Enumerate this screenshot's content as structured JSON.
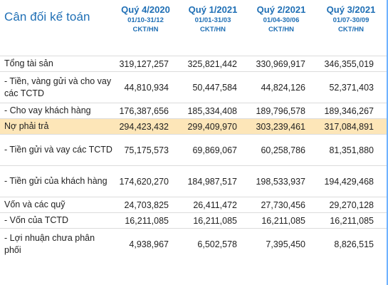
{
  "table": {
    "title": "Cân đối kế toán",
    "columns": [
      {
        "quarter": "Quý 4/2020",
        "range": "01/10-31/12",
        "unit": "CKT/HN"
      },
      {
        "quarter": "Quý 1/2021",
        "range": "01/01-31/03",
        "unit": "CKT/HN"
      },
      {
        "quarter": "Quý 2/2021",
        "range": "01/04-30/06",
        "unit": "CKT/HN"
      },
      {
        "quarter": "Quý 3/2021",
        "range": "01/07-30/09",
        "unit": "CKT/HN"
      }
    ],
    "rows": [
      {
        "label": "Tổng tài sản",
        "values": [
          "319,127,257",
          "325,821,442",
          "330,969,917",
          "346,355,019"
        ]
      },
      {
        "label": "- Tiền, vàng gửi và cho vay các TCTD",
        "values": [
          "44,810,934",
          "50,447,584",
          "44,824,126",
          "52,371,403"
        ]
      },
      {
        "label": "- Cho vay khách hàng",
        "values": [
          "176,387,656",
          "185,334,408",
          "189,796,578",
          "189,346,267"
        ]
      },
      {
        "label": "Nợ phải trả",
        "values": [
          "294,423,432",
          "299,409,970",
          "303,239,461",
          "317,084,891"
        ]
      },
      {
        "label": "- Tiền gửi và vay các TCTD",
        "values": [
          "75,175,573",
          "69,869,067",
          "60,258,786",
          "81,351,880"
        ]
      },
      {
        "label": "- Tiền gửi của khách hàng",
        "values": [
          "174,620,270",
          "184,987,517",
          "198,533,937",
          "194,429,468"
        ]
      },
      {
        "label": "Vốn và các quỹ",
        "values": [
          "24,703,825",
          "26,411,472",
          "27,730,456",
          "29,270,128"
        ]
      },
      {
        "label": "- Vốn của TCTD",
        "values": [
          "16,211,085",
          "16,211,085",
          "16,211,085",
          "16,211,085"
        ]
      },
      {
        "label": "- Lợi nhuận chưa phân phối",
        "values": [
          "4,938,967",
          "6,502,578",
          "7,395,450",
          "8,826,515"
        ]
      }
    ]
  },
  "colors": {
    "header_text": "#1f6fb5",
    "highlight_row": "#fde6b8",
    "grid_line": "#dcdcdc"
  }
}
